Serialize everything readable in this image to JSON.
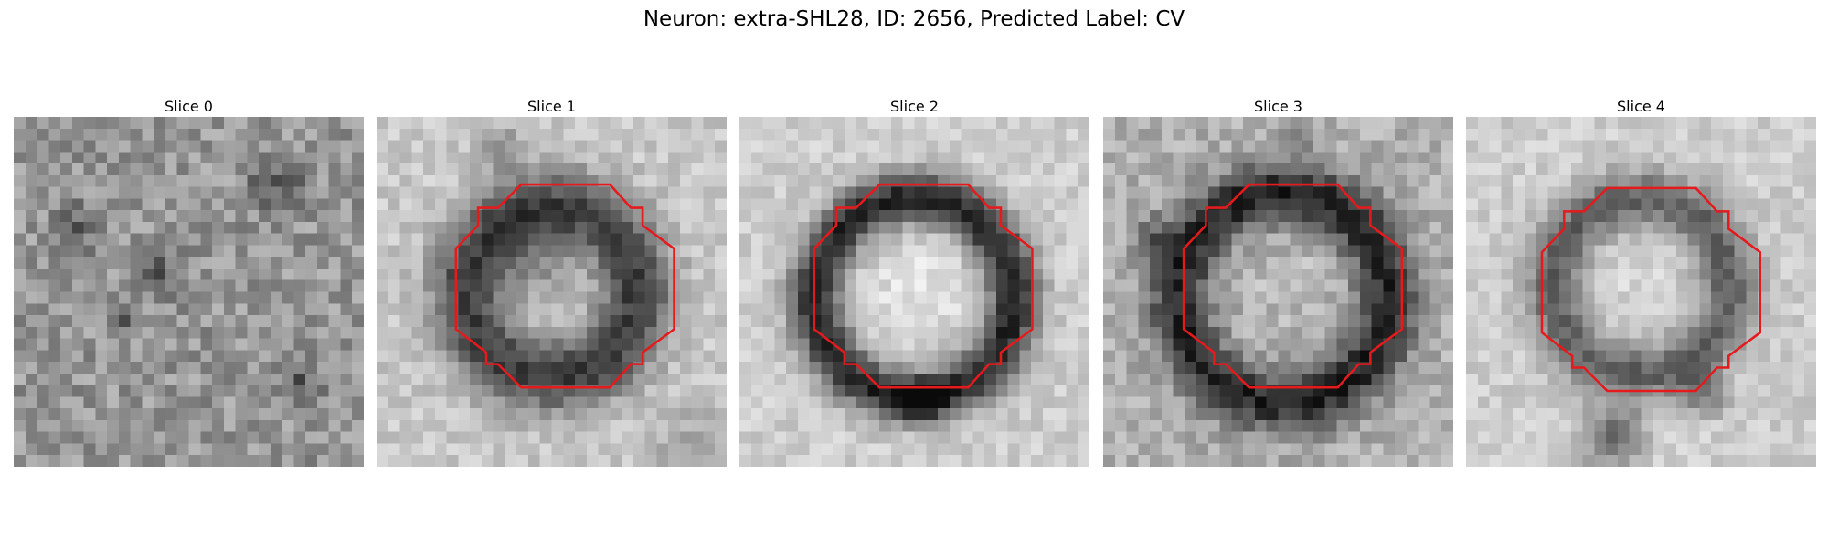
{
  "figure": {
    "title": "Neuron: extra-SHL28, ID: 2656, Predicted Label: CV",
    "contour_color": "#e41a1c"
  },
  "panels": [
    {
      "title": "Slice 0",
      "has_contour": false
    },
    {
      "title": "Slice 1",
      "has_contour": true
    },
    {
      "title": "Slice 2",
      "has_contour": true
    },
    {
      "title": "Slice 3",
      "has_contour": true
    },
    {
      "title": "Slice 4",
      "has_contour": true
    }
  ]
}
